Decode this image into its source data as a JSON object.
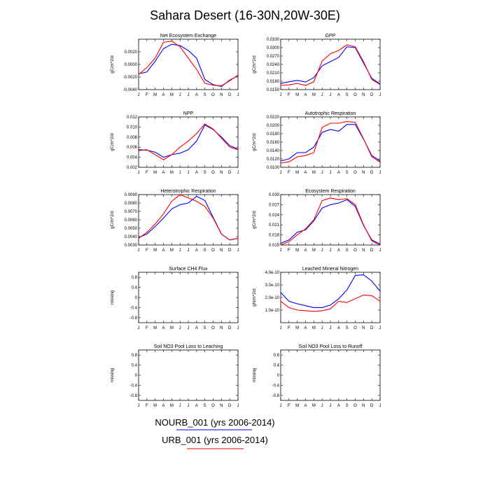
{
  "title": "Sahara Desert (16-30N,20W-30E)",
  "months": [
    "J",
    "F",
    "M",
    "A",
    "M",
    "J",
    "J",
    "A",
    "S",
    "O",
    "N",
    "D",
    "J"
  ],
  "colors": {
    "NOURB_001": "#0000ff",
    "URB_001": "#ff0000"
  },
  "legend": [
    {
      "label": "NOURB_001 (yrs 2006-2014)",
      "color": "#0000ff"
    },
    {
      "label": "URB_001 (yrs 2006-2014)",
      "color": "#ff0000"
    }
  ],
  "chart_data": [
    {
      "type": "line",
      "title": "Net Ecosystem Exchange",
      "ylabel": "gC/m^2/d",
      "ylim": [
        -0.004,
        0.004
      ],
      "yticks": [
        -0.004,
        -0.002,
        0.0,
        0.002
      ],
      "ytick_labels": [
        "-0.0040",
        "-0.0020",
        "0.0000",
        "0.0020"
      ],
      "x": [
        "J",
        "F",
        "M",
        "A",
        "M",
        "J",
        "J",
        "A",
        "S",
        "O",
        "N",
        "D",
        "J"
      ],
      "series": [
        {
          "name": "NOURB_001",
          "color": "#0000ff",
          "values": [
            -0.0015,
            -0.0012,
            0.0005,
            0.0025,
            0.0032,
            0.003,
            0.0022,
            0.001,
            -0.0024,
            -0.0032,
            -0.0035,
            -0.0025,
            -0.0018
          ]
        },
        {
          "name": "URB_001",
          "color": "#ff0000",
          "values": [
            -0.0016,
            -0.0005,
            0.001,
            0.0035,
            0.0037,
            0.0028,
            0.001,
            -0.0008,
            -0.003,
            -0.0033,
            -0.0034,
            -0.0026,
            -0.0017
          ]
        }
      ]
    },
    {
      "type": "line",
      "title": "GPP",
      "ylabel": "gC/m^2/d",
      "ylim": [
        0.015,
        0.033
      ],
      "yticks": [
        0.015,
        0.018,
        0.021,
        0.024,
        0.027,
        0.03,
        0.033
      ],
      "ytick_labels": [
        "0.0150",
        "0.0180",
        "0.0210",
        "0.0240",
        "0.0270",
        "0.0300",
        "0.0330"
      ],
      "x": [
        "J",
        "F",
        "M",
        "A",
        "M",
        "J",
        "J",
        "A",
        "S",
        "O",
        "N",
        "D",
        "J"
      ],
      "series": [
        {
          "name": "NOURB_001",
          "color": "#0000ff",
          "values": [
            0.0172,
            0.0178,
            0.0183,
            0.0177,
            0.0193,
            0.0235,
            0.025,
            0.0265,
            0.0303,
            0.03,
            0.0245,
            0.019,
            0.017
          ]
        },
        {
          "name": "URB_001",
          "color": "#ff0000",
          "values": [
            0.0165,
            0.0167,
            0.0172,
            0.0165,
            0.0178,
            0.0252,
            0.0278,
            0.029,
            0.031,
            0.0303,
            0.025,
            0.0186,
            0.0168
          ]
        }
      ]
    },
    {
      "type": "line",
      "title": "NPP",
      "ylabel": "gC/m^2/d",
      "ylim": [
        0.002,
        0.012
      ],
      "yticks": [
        0.002,
        0.004,
        0.006,
        0.008,
        0.01,
        0.012
      ],
      "ytick_labels": [
        "0.002",
        "0.004",
        "0.006",
        "0.008",
        "0.010",
        "0.012"
      ],
      "x": [
        "J",
        "F",
        "M",
        "A",
        "M",
        "J",
        "J",
        "A",
        "S",
        "O",
        "N",
        "D",
        "J"
      ],
      "series": [
        {
          "name": "NOURB_001",
          "color": "#0000ff",
          "values": [
            0.0055,
            0.0054,
            0.005,
            0.004,
            0.0045,
            0.0048,
            0.0055,
            0.0072,
            0.0104,
            0.0095,
            0.008,
            0.0063,
            0.0056
          ]
        },
        {
          "name": "URB_001",
          "color": "#ff0000",
          "values": [
            0.0053,
            0.0055,
            0.0045,
            0.0035,
            0.0045,
            0.006,
            0.0072,
            0.0087,
            0.0106,
            0.0096,
            0.0078,
            0.006,
            0.0055
          ]
        }
      ]
    },
    {
      "type": "line",
      "title": "Autotrophic Respiration",
      "ylabel": "gC/m^2/d",
      "ylim": [
        0.01,
        0.022
      ],
      "yticks": [
        0.01,
        0.012,
        0.014,
        0.016,
        0.018,
        0.02,
        0.022
      ],
      "ytick_labels": [
        "0.0100",
        "0.0120",
        "0.0140",
        "0.0160",
        "0.0180",
        "0.0200",
        "0.0220"
      ],
      "x": [
        "J",
        "F",
        "M",
        "A",
        "M",
        "J",
        "J",
        "A",
        "S",
        "O",
        "N",
        "D",
        "J"
      ],
      "series": [
        {
          "name": "NOURB_001",
          "color": "#0000ff",
          "values": [
            0.0115,
            0.012,
            0.0135,
            0.0135,
            0.0148,
            0.0183,
            0.019,
            0.0186,
            0.0202,
            0.0202,
            0.0167,
            0.0128,
            0.0115
          ]
        },
        {
          "name": "URB_001",
          "color": "#ff0000",
          "values": [
            0.011,
            0.0113,
            0.0125,
            0.0128,
            0.0135,
            0.0195,
            0.0205,
            0.0205,
            0.0209,
            0.0207,
            0.0168,
            0.0125,
            0.0112
          ]
        }
      ]
    },
    {
      "type": "line",
      "title": "Heterotrophic Respiration",
      "ylabel": "gC/m^2/d",
      "ylim": [
        0.003,
        0.009
      ],
      "yticks": [
        0.003,
        0.004,
        0.005,
        0.006,
        0.007,
        0.008,
        0.009
      ],
      "ytick_labels": [
        "0.0030",
        "0.0040",
        "0.0050",
        "0.0060",
        "0.0070",
        "0.0080",
        "0.0090"
      ],
      "x": [
        "J",
        "F",
        "M",
        "A",
        "M",
        "J",
        "J",
        "A",
        "S",
        "O",
        "N",
        "D",
        "J"
      ],
      "series": [
        {
          "name": "NOURB_001",
          "color": "#0000ff",
          "values": [
            0.0039,
            0.0043,
            0.0052,
            0.0062,
            0.0073,
            0.0078,
            0.008,
            0.0088,
            0.0083,
            0.0063,
            0.0043,
            0.0036,
            0.0038
          ]
        },
        {
          "name": "URB_001",
          "color": "#ff0000",
          "values": [
            0.0038,
            0.0045,
            0.0055,
            0.0067,
            0.0082,
            0.009,
            0.0086,
            0.0082,
            0.0076,
            0.0062,
            0.0043,
            0.0036,
            0.0038
          ]
        }
      ]
    },
    {
      "type": "line",
      "title": "Ecosystem Respiration",
      "ylabel": "gC/m^2/d",
      "ylim": [
        0.015,
        0.03
      ],
      "yticks": [
        0.015,
        0.018,
        0.021,
        0.024,
        0.027,
        0.03
      ],
      "ytick_labels": [
        "0.015",
        "0.018",
        "0.021",
        "0.024",
        "0.027",
        "0.030"
      ],
      "x": [
        "J",
        "F",
        "M",
        "A",
        "M",
        "J",
        "J",
        "A",
        "S",
        "O",
        "N",
        "D",
        "J"
      ],
      "series": [
        {
          "name": "NOURB_001",
          "color": "#0000ff",
          "values": [
            0.0155,
            0.0165,
            0.0188,
            0.0195,
            0.0222,
            0.026,
            0.027,
            0.0275,
            0.0285,
            0.0265,
            0.0208,
            0.0165,
            0.0153
          ]
        },
        {
          "name": "URB_001",
          "color": "#ff0000",
          "values": [
            0.015,
            0.016,
            0.018,
            0.0198,
            0.0225,
            0.0282,
            0.029,
            0.0285,
            0.0288,
            0.027,
            0.021,
            0.0162,
            0.015
          ]
        }
      ]
    },
    {
      "type": "line",
      "title": "Surface CH4 Flux",
      "ylabel": "missing",
      "ylim": [
        -1.0,
        1.0
      ],
      "yticks": [
        -0.8,
        -0.4,
        0.0,
        0.4,
        0.8
      ],
      "ytick_labels": [
        "-0.8",
        "-0.4",
        "0",
        "0.4",
        "0.8"
      ],
      "x": [
        "J",
        "F",
        "M",
        "A",
        "M",
        "J",
        "J",
        "A",
        "S",
        "O",
        "N",
        "D",
        "J"
      ],
      "series": []
    },
    {
      "type": "line",
      "title": "Leached Mineral Nitrogen",
      "ylabel": "gN/m^2/d",
      "ylim": [
        0.0,
        4e-10
      ],
      "yticks": [
        1e-10,
        2e-10,
        3e-10,
        4e-10
      ],
      "ytick_labels": [
        "1.0e-10",
        "2.0e-10",
        "3.0e-10",
        "4.0e-10"
      ],
      "x": [
        "J",
        "F",
        "M",
        "A",
        "M",
        "J",
        "J",
        "A",
        "S",
        "O",
        "N",
        "D",
        "J"
      ],
      "series": [
        {
          "name": "NOURB_001",
          "color": "#0000ff",
          "values": [
            2.4e-10,
            1.7e-10,
            1.5e-10,
            1.35e-10,
            1.2e-10,
            1.2e-10,
            1.4e-10,
            1.9e-10,
            2.6e-10,
            3.75e-10,
            3.8e-10,
            3.3e-10,
            2.5e-10
          ]
        },
        {
          "name": "URB_001",
          "color": "#ff0000",
          "values": [
            1.7e-10,
            1.2e-10,
            1e-10,
            9.5e-11,
            9e-11,
            9.5e-11,
            1.1e-10,
            1.7e-10,
            1.6e-10,
            1.9e-10,
            2.2e-10,
            2.15e-10,
            1.7e-10
          ]
        }
      ]
    },
    {
      "type": "line",
      "title": "Soil NO3 Pool Loss to Leaching",
      "ylabel": "missing",
      "ylim": [
        -1.0,
        1.0
      ],
      "yticks": [
        -0.8,
        -0.4,
        0.0,
        0.4,
        0.8
      ],
      "ytick_labels": [
        "-0.8",
        "-0.4",
        "0",
        "0.4",
        "0.8"
      ],
      "x": [
        "J",
        "F",
        "M",
        "A",
        "M",
        "J",
        "J",
        "A",
        "S",
        "O",
        "N",
        "D",
        "J"
      ],
      "series": []
    },
    {
      "type": "line",
      "title": "Soil NO3 Pool Loss to Runoff",
      "ylabel": "missing",
      "ylim": [
        -1.0,
        1.0
      ],
      "yticks": [
        -0.8,
        -0.4,
        0.0,
        0.4,
        0.8
      ],
      "ytick_labels": [
        "-0.8",
        "-0.4",
        "0",
        "0.4",
        "0.8"
      ],
      "x": [
        "J",
        "F",
        "M",
        "A",
        "M",
        "J",
        "J",
        "A",
        "S",
        "O",
        "N",
        "D",
        "J"
      ],
      "series": []
    }
  ]
}
